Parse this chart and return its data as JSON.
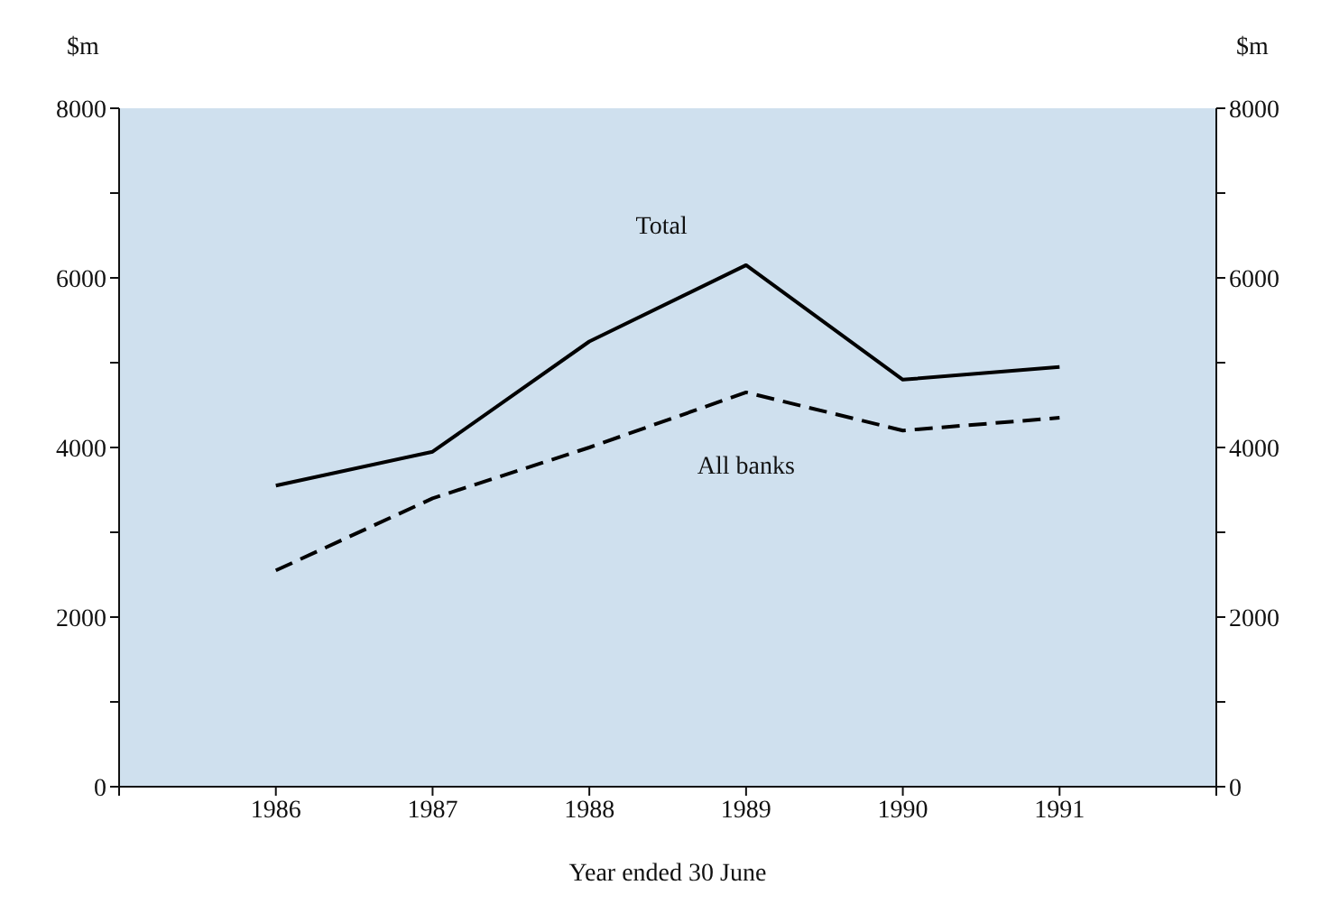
{
  "chart_data": {
    "type": "line",
    "xlabel": "Year ended 30 June",
    "ylabel": "$m",
    "y2label": "$m",
    "x": [
      1986,
      1987,
      1988,
      1989,
      1990,
      1991
    ],
    "series": [
      {
        "name": "Total",
        "color": "#000000",
        "line_style": "solid",
        "values": [
          3550,
          3950,
          5250,
          6150,
          4800,
          4950
        ]
      },
      {
        "name": "All banks",
        "color": "#000000",
        "line_style": "dashed",
        "values": [
          2550,
          3400,
          4000,
          4650,
          4200,
          4350
        ]
      }
    ],
    "xlim": [
      1985,
      1992
    ],
    "xticks": [
      {
        "value": 1985,
        "label": null
      },
      1986,
      1987,
      1988,
      1989,
      1990,
      1991,
      {
        "value": 1992,
        "label": null
      }
    ],
    "ylim": [
      0,
      8000
    ],
    "yticks": [
      0,
      {
        "value": 1000,
        "label": null
      },
      2000,
      {
        "value": 3000,
        "label": null
      },
      4000,
      {
        "value": 5000,
        "label": null
      },
      6000,
      {
        "value": 7000,
        "label": null
      },
      8000
    ],
    "y2lim": [
      0,
      8000
    ],
    "y2ticks": [
      0,
      {
        "value": 1000,
        "label": null
      },
      2000,
      {
        "value": 3000,
        "label": null
      },
      4000,
      {
        "value": 5000,
        "label": null
      },
      6000,
      {
        "value": 7000,
        "label": null
      },
      8000
    ],
    "marker": "none",
    "grid": false,
    "legend": false
  }
}
